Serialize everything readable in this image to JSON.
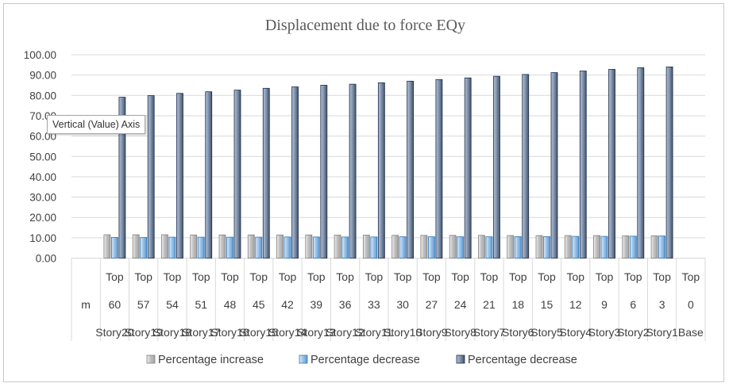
{
  "tooltip": "Vertical (Value) Axis",
  "colors": {
    "series1": "#bfbfbf",
    "series2": "#9dc3e6",
    "series3": "#8497b0",
    "gridline": "#d9d9d9",
    "axis_text": "#404040"
  },
  "chart_data": {
    "type": "bar",
    "title": "Displacement due to force EQy",
    "ylim": [
      0,
      100
    ],
    "y_ticks": [
      "0.00",
      "10.00",
      "20.00",
      "30.00",
      "40.00",
      "50.00",
      "60.00",
      "70.00",
      "80.00",
      "90.00",
      "100.00"
    ],
    "grid": true,
    "legend_position": "bottom",
    "category_levels": {
      "row1": [
        "",
        "Top",
        "Top",
        "Top",
        "Top",
        "Top",
        "Top",
        "Top",
        "Top",
        "Top",
        "Top",
        "Top",
        "Top",
        "Top",
        "Top",
        "Top",
        "Top",
        "Top",
        "Top",
        "Top",
        "Top",
        "Top"
      ],
      "row2": [
        "m",
        "60",
        "57",
        "54",
        "51",
        "48",
        "45",
        "42",
        "39",
        "36",
        "33",
        "30",
        "27",
        "24",
        "21",
        "18",
        "15",
        "12",
        "9",
        "6",
        "3",
        "0"
      ],
      "row3": [
        "",
        "Story20",
        "Story19",
        "Story18",
        "Story17",
        "Story16",
        "Story15",
        "Story14",
        "Story13",
        "Story12",
        "Story11",
        "Story10",
        "Story9",
        "Story8",
        "Story7",
        "Story6",
        "Story5",
        "Story4",
        "Story3",
        "Story2",
        "Story1",
        "Base"
      ]
    },
    "series": [
      {
        "name": "Percentage increase",
        "values": [
          null,
          11.5,
          11.5,
          11.5,
          11.4,
          11.4,
          11.4,
          11.4,
          11.4,
          11.3,
          11.3,
          11.2,
          11.2,
          11.2,
          11.2,
          11.1,
          11.1,
          11.1,
          11.1,
          11.0,
          11.0,
          null
        ]
      },
      {
        "name": "Percentage decrease",
        "values": [
          null,
          10.2,
          10.2,
          10.3,
          10.3,
          10.3,
          10.3,
          10.4,
          10.4,
          10.4,
          10.4,
          10.5,
          10.5,
          10.5,
          10.5,
          10.6,
          10.6,
          10.7,
          10.7,
          10.8,
          10.9,
          null
        ]
      },
      {
        "name": "Percentage decrease",
        "values": [
          null,
          79.1,
          79.9,
          81.0,
          81.8,
          82.6,
          83.5,
          84.2,
          85.0,
          85.5,
          86.2,
          87.0,
          87.8,
          88.6,
          89.4,
          90.3,
          91.2,
          92.0,
          92.8,
          93.6,
          94.0,
          null
        ]
      }
    ]
  }
}
